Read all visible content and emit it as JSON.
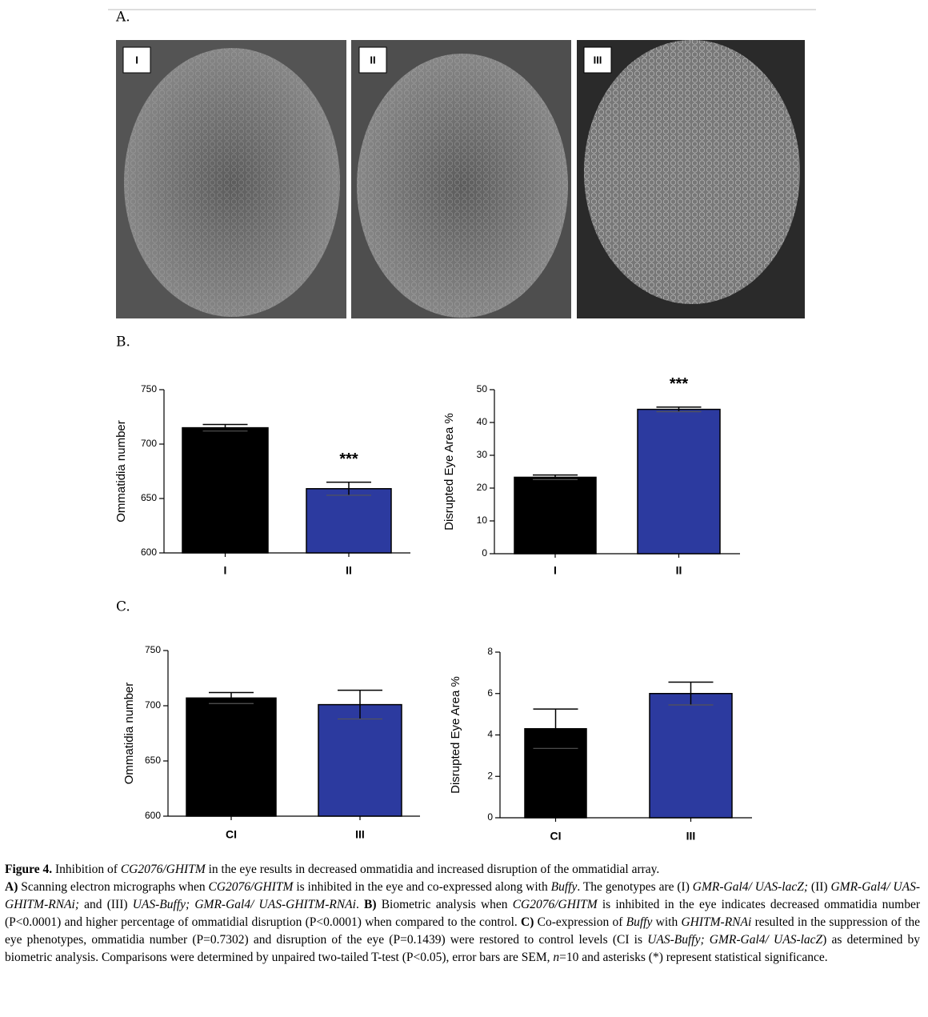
{
  "panels": {
    "a": "A.",
    "b": "B.",
    "c": "C."
  },
  "micrographs": {
    "labels": [
      "I",
      "II",
      "III"
    ]
  },
  "chart_data": [
    {
      "type": "bar",
      "y_label": "Ommatidia number",
      "categories": [
        "I",
        "II"
      ],
      "values": [
        715,
        659
      ],
      "errors": [
        3,
        6
      ],
      "colors": [
        "#000000",
        "#2c3a9f"
      ],
      "significance": [
        null,
        "***"
      ],
      "ylim": [
        600,
        750
      ],
      "yticks": [
        600,
        650,
        700,
        750
      ]
    },
    {
      "type": "bar",
      "y_label": "Disrupted Eye Area %",
      "categories": [
        "I",
        "II"
      ],
      "values": [
        23.3,
        44
      ],
      "errors": [
        0.7,
        0.7
      ],
      "colors": [
        "#000000",
        "#2c3a9f"
      ],
      "significance": [
        null,
        "***"
      ],
      "ylim": [
        0,
        50
      ],
      "yticks": [
        0,
        10,
        20,
        30,
        40,
        50
      ]
    },
    {
      "type": "bar",
      "y_label": "Ommatidia number",
      "categories": [
        "CI",
        "III"
      ],
      "values": [
        707,
        701
      ],
      "errors": [
        5,
        13
      ],
      "colors": [
        "#000000",
        "#2c3a9f"
      ],
      "ylim": [
        600,
        750
      ],
      "yticks": [
        600,
        650,
        700,
        750
      ]
    },
    {
      "type": "bar",
      "y_label": "Disrupted Eye Area %",
      "categories": [
        "CI",
        "III"
      ],
      "values": [
        4.3,
        6.0
      ],
      "errors": [
        0.95,
        0.55
      ],
      "colors": [
        "#000000",
        "#2c3a9f"
      ],
      "ylim": [
        0,
        8
      ],
      "yticks": [
        0,
        2,
        4,
        6,
        8
      ]
    }
  ],
  "caption": {
    "runs": [
      "Figure 4.",
      " Inhibition of ",
      "CG2076/GHITM",
      " in the eye results in decreased ommatidia and increased disruption of the ommatidial array.",
      "A)",
      " Scanning electron micrographs when ",
      "CG2076/GHITM",
      " is inhibited in the eye and co-expressed along with ",
      "Buffy",
      ". The genotypes are (I) ",
      "GMR-Gal4/ UAS-lacZ;",
      " (II) ",
      "GMR-Gal4/ UAS-GHITM-RNAi;",
      " and (III) ",
      "UAS-Buffy; GMR-Gal4/ UAS-GHITM-RNAi",
      ". ",
      "B)",
      " Biometric analysis when ",
      "CG2076/GHITM",
      " is inhibited in the eye indicates decreased ommatidia number (P<0.0001) and higher percentage of ommatidial disruption (P<0.0001) when compared to the control. ",
      "C)",
      " Co-expression of ",
      "Buffy",
      " with ",
      "GHITM-RNAi",
      " resulted in the suppression of the eye phenotypes, ommatidia number (P=0.7302) and disruption of the eye (P=0.1439) were restored to control levels (CI is ",
      "UAS-Buffy; GMR-Gal4/ UAS-lacZ",
      ") as determined by biometric analysis. Comparisons were determined by unpaired two-tailed T-test (P<0.05), error bars are SEM, ",
      "n",
      "=10 and asterisks (*) represent statistical significance."
    ]
  }
}
